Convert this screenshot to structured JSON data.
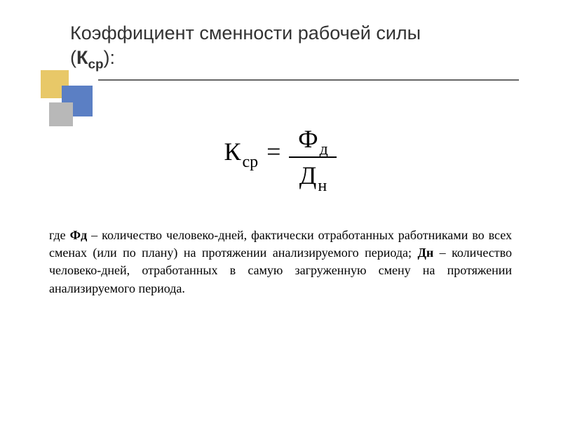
{
  "slide": {
    "title_line1": "Коэффициент сменности рабочей силы",
    "title_symbol_open": "(",
    "title_symbol_k": "К",
    "title_symbol_sub": "ср",
    "title_symbol_close": "):",
    "formula": {
      "lhs_main": "К",
      "lhs_sub": "ср",
      "equals": "=",
      "numerator_main": "Ф",
      "numerator_sub": "д",
      "denominator_main": "Д",
      "denominator_sub": "н"
    },
    "description": {
      "where": "где ",
      "term1": "Фд",
      "text1": " – количество человеко-дней, фактически отработанных работниками во всех сменах (или по плану) на протяжении анализируемого периода; ",
      "term2": "Дн",
      "text2": " –  количество человеко-дней,  отработанных в самую загруженную смену  на протяжении анализируемого периода."
    },
    "colors": {
      "square_yellow": "#e8c868",
      "square_blue": "#5b7fc4",
      "square_gray": "#b8b8b8",
      "underline": "#666666",
      "title_text": "#333333",
      "body_text": "#000000",
      "background": "#ffffff"
    },
    "typography": {
      "title_fontsize": 27,
      "formula_fontsize": 36,
      "formula_sub_fontsize": 24,
      "body_fontsize": 18,
      "title_family": "Verdana",
      "body_family": "Times New Roman"
    }
  }
}
